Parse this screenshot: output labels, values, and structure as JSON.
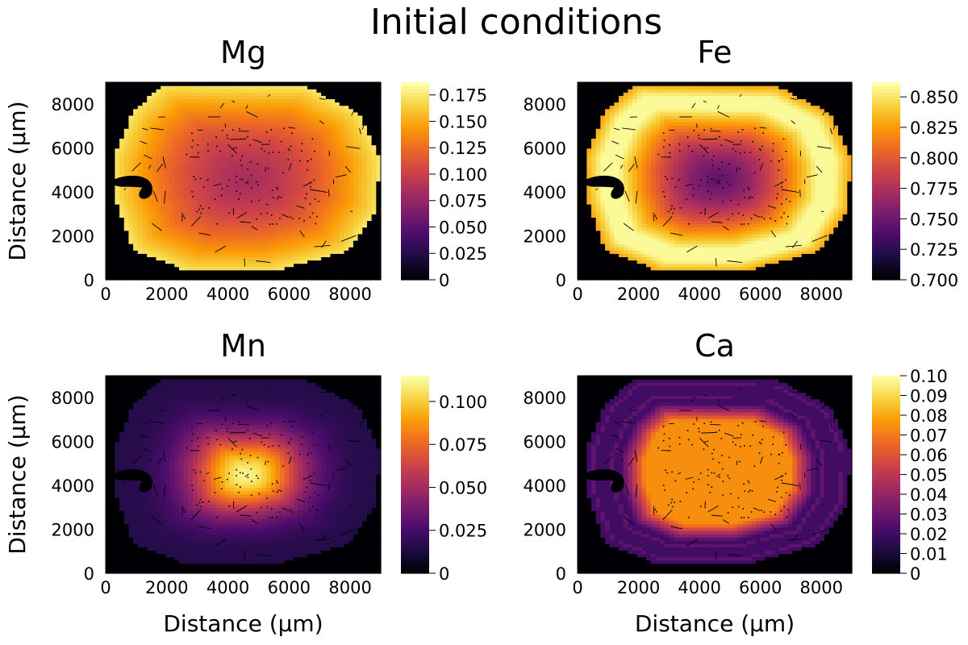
{
  "figure": {
    "title": "Initial conditions"
  },
  "chart_data": [
    {
      "type": "heatmap",
      "title": "Mg",
      "xlabel": "",
      "ylabel": "Distance (μm)",
      "xlim": [
        0,
        9000
      ],
      "ylim": [
        0,
        9000
      ],
      "xticks": [
        0,
        2000,
        4000,
        6000,
        8000
      ],
      "xtick_labels": [
        "0",
        "2000",
        "4000",
        "6000",
        "8000"
      ],
      "yticks": [
        0,
        2000,
        4000,
        6000,
        8000
      ],
      "ytick_labels": [
        "0",
        "2000",
        "4000",
        "6000",
        "8000"
      ],
      "colorbar": {
        "colormap": "inferno",
        "clim": [
          0,
          0.187
        ],
        "ticks": [
          0,
          0.025,
          0.05,
          0.075,
          0.1,
          0.125,
          0.15,
          0.175
        ],
        "tick_labels": [
          "0",
          "0.025",
          "0.050",
          "0.075",
          "0.100",
          "0.125",
          "0.150",
          "0.175"
        ]
      },
      "grain": {
        "center": [
          4600,
          4600
        ],
        "rim_value": 0.175,
        "core_value": 0.085,
        "outside_value": 0,
        "profile": "decreasing-inward"
      }
    },
    {
      "type": "heatmap",
      "title": "Fe",
      "xlabel": "",
      "ylabel": "",
      "xlim": [
        0,
        9000
      ],
      "ylim": [
        0,
        9000
      ],
      "xticks": [
        0,
        2000,
        4000,
        6000,
        8000
      ],
      "xtick_labels": [
        "0",
        "2000",
        "4000",
        "6000",
        "8000"
      ],
      "yticks": [
        0,
        2000,
        4000,
        6000,
        8000
      ],
      "ytick_labels": [
        "0",
        "2000",
        "4000",
        "6000",
        "8000"
      ],
      "colorbar": {
        "colormap": "inferno",
        "clim": [
          0.7,
          0.862
        ],
        "ticks": [
          0.7,
          0.725,
          0.75,
          0.775,
          0.8,
          0.825,
          0.85
        ],
        "tick_labels": [
          "0.700",
          "0.725",
          "0.750",
          "0.775",
          "0.800",
          "0.825",
          "0.850"
        ]
      },
      "grain": {
        "center": [
          4600,
          4600
        ],
        "core_value": 0.745,
        "mantle_value": 0.86,
        "rim_value": 0.83,
        "outside_value": 0.7,
        "profile": "increasing-outward-with-bright-mantle"
      }
    },
    {
      "type": "heatmap",
      "title": "Mn",
      "xlabel": "Distance (μm)",
      "ylabel": "Distance (μm)",
      "xlim": [
        0,
        9000
      ],
      "ylim": [
        0,
        9000
      ],
      "xticks": [
        0,
        2000,
        4000,
        6000,
        8000
      ],
      "xtick_labels": [
        "0",
        "2000",
        "4000",
        "6000",
        "8000"
      ],
      "yticks": [
        0,
        2000,
        4000,
        6000,
        8000
      ],
      "ytick_labels": [
        "0",
        "2000",
        "4000",
        "6000",
        "8000"
      ],
      "colorbar": {
        "colormap": "inferno",
        "clim": [
          0,
          0.115
        ],
        "ticks": [
          0,
          0.025,
          0.05,
          0.075,
          0.1
        ],
        "tick_labels": [
          "0",
          "0.025",
          "0.050",
          "0.075",
          "0.100"
        ]
      },
      "grain": {
        "center": [
          4600,
          4500
        ],
        "core_value": 0.112,
        "rim_value": 0.015,
        "outside_value": 0,
        "profile": "gaussian-core"
      }
    },
    {
      "type": "heatmap",
      "title": "Ca",
      "xlabel": "Distance (μm)",
      "ylabel": "",
      "xlim": [
        0,
        9000
      ],
      "ylim": [
        0,
        9000
      ],
      "xticks": [
        0,
        2000,
        4000,
        6000,
        8000
      ],
      "xtick_labels": [
        "0",
        "2000",
        "4000",
        "6000",
        "8000"
      ],
      "yticks": [
        0,
        2000,
        4000,
        6000,
        8000
      ],
      "ytick_labels": [
        "0",
        "2000",
        "4000",
        "6000",
        "8000"
      ],
      "colorbar": {
        "colormap": "inferno",
        "clim": [
          0,
          0.1
        ],
        "ticks": [
          0,
          0.01,
          0.02,
          0.03,
          0.04,
          0.05,
          0.06,
          0.07,
          0.08,
          0.09,
          0.1
        ],
        "tick_labels": [
          "0",
          "0.01",
          "0.02",
          "0.03",
          "0.04",
          "0.05",
          "0.06",
          "0.07",
          "0.08",
          "0.09",
          "0.10"
        ]
      },
      "grain": {
        "center": [
          4600,
          4600
        ],
        "core_value": 0.075,
        "rim_value": 0.02,
        "band_value": 0.027,
        "outside_value": 0,
        "profile": "plateau-core-with-rim-bands"
      }
    }
  ]
}
